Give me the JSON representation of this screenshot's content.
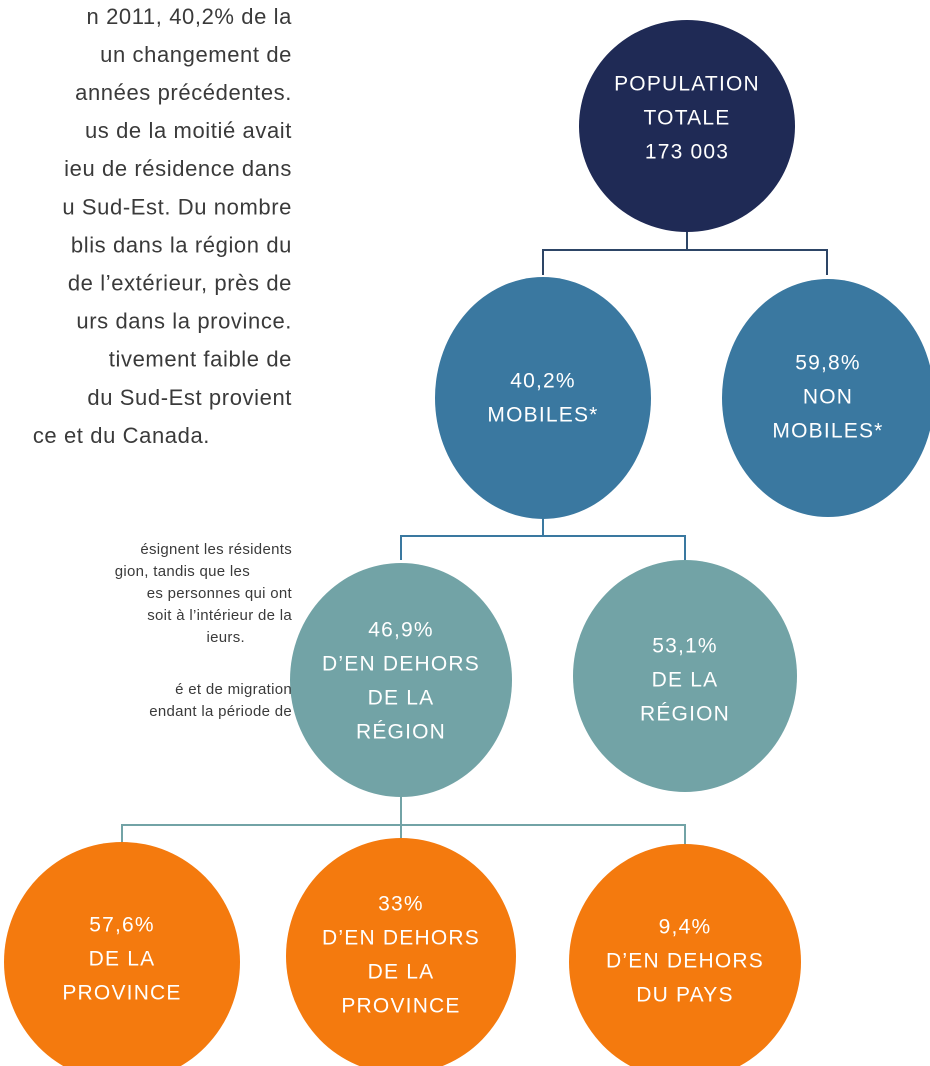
{
  "paragraph": [
    "n 2011, 40,2% de la",
    "un changement de",
    "années précédentes.",
    "us de la moitié avait",
    "ieu de résidence dans",
    "u Sud-Est. Du nombre",
    "blis dans la région du",
    "de l’extérieur, près de",
    "urs dans la province.",
    "tivement faible de",
    "du Sud-Est provient",
    "ce et du Canada."
  ],
  "notes": [
    "ésignent les résidents",
    "gion, tandis que les",
    "es personnes qui ont",
    "soit à l’intérieur de la",
    "ieurs.",
    "é et de migration",
    "endant la période de"
  ],
  "nodes": [
    {
      "lines": [
        "POPULATION",
        "TOTALE",
        "173 003"
      ]
    },
    {
      "lines": [
        "40,2%",
        "MOBILES*"
      ]
    },
    {
      "lines": [
        "59,8%",
        "NON",
        "MOBILES*"
      ]
    },
    {
      "lines": [
        "46,9%",
        "D’EN DEHORS",
        "DE LA",
        "RÉGION"
      ]
    },
    {
      "lines": [
        "53,1%",
        "DE LA",
        "RÉGION"
      ]
    },
    {
      "lines": [
        "57,6%",
        "DE LA",
        "PROVINCE"
      ]
    },
    {
      "lines": [
        "33%",
        "D’EN DEHORS",
        "DE LA",
        "PROVINCE"
      ]
    },
    {
      "lines": [
        "9,4%",
        "D’EN DEHORS",
        "DU PAYS"
      ]
    }
  ]
}
